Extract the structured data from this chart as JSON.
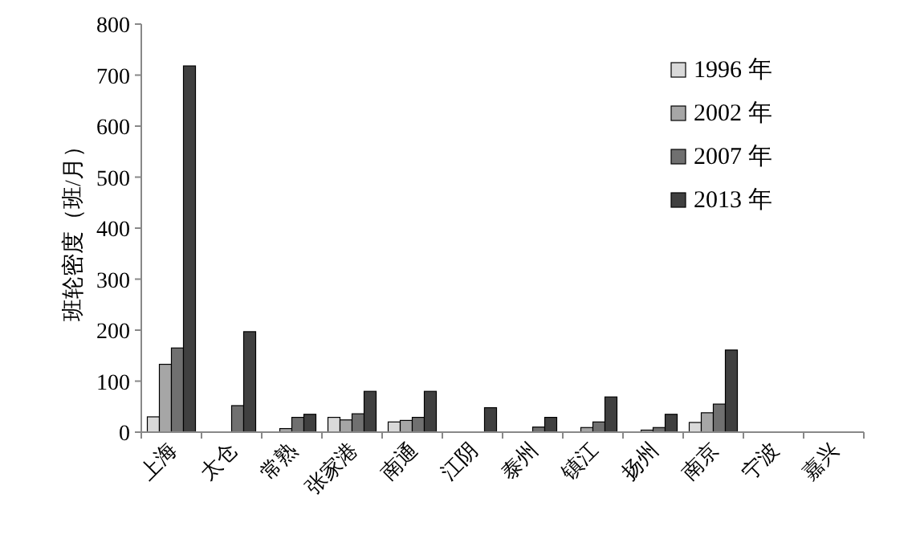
{
  "chart_data": {
    "type": "bar",
    "ylabel": "班轮密度（班/月）",
    "categories": [
      "上海",
      "太仓",
      "常熟",
      "张家港",
      "南通",
      "江阴",
      "泰州",
      "镇江",
      "扬州",
      "南京",
      "宁波",
      "嘉兴"
    ],
    "series": [
      {
        "name": "1996 年",
        "color": "#d9d9d9",
        "values": [
          30,
          0,
          0,
          29,
          20,
          null,
          null,
          null,
          null,
          19,
          0,
          0
        ]
      },
      {
        "name": "2002 年",
        "color": "#a6a6a6",
        "values": [
          133,
          0,
          7,
          24,
          23,
          0,
          null,
          9,
          4,
          38,
          0,
          0
        ]
      },
      {
        "name": "2007 年",
        "color": "#707070",
        "values": [
          165,
          52,
          29,
          36,
          29,
          0,
          10,
          20,
          9,
          55,
          0,
          0
        ]
      },
      {
        "name": "2013 年",
        "color": "#404040",
        "values": [
          718,
          197,
          35,
          80,
          80,
          48,
          29,
          69,
          35,
          161,
          0,
          0
        ]
      }
    ],
    "ylim": [
      0,
      800
    ],
    "yticks": [
      0,
      100,
      200,
      300,
      400,
      500,
      600,
      700,
      800
    ],
    "legend": "top right",
    "grid": false
  }
}
